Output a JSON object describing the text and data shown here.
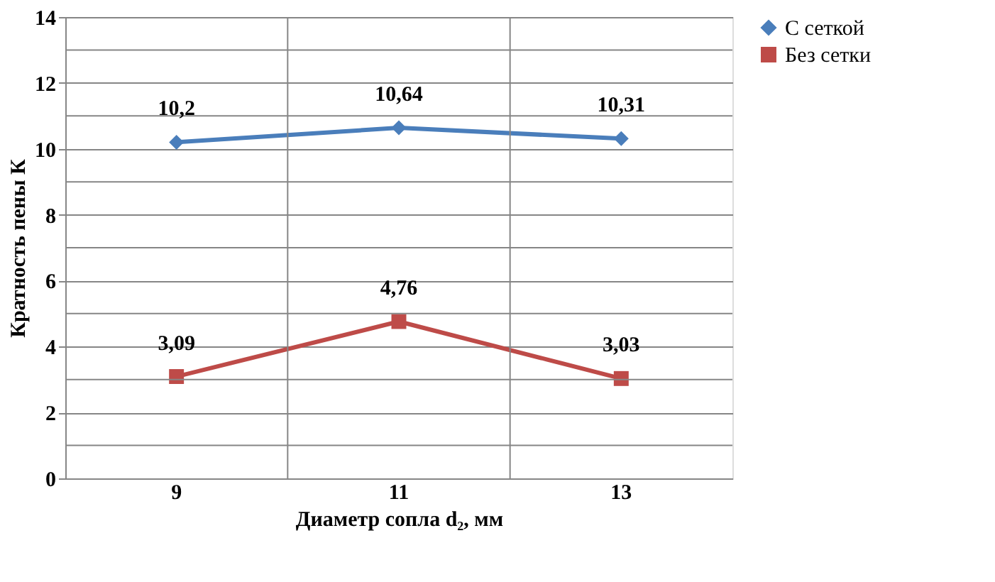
{
  "chart_data": {
    "type": "line",
    "xlabel": "Диаметр сопла d₂, мм",
    "ylabel": "Кратность пены К",
    "categories": [
      "9",
      "11",
      "13"
    ],
    "series": [
      {
        "name": "С сеткой",
        "color": "#4a7ebb",
        "marker": "diamond",
        "line_style": "solid",
        "values": [
          10.2,
          10.64,
          10.31
        ],
        "value_labels": [
          "10,2",
          "10,64",
          "10,31"
        ]
      },
      {
        "name": "Без сетки",
        "color": "#be4b48",
        "marker": "square",
        "line_style": "solid",
        "values": [
          3.09,
          4.76,
          3.03
        ],
        "value_labels": [
          "3,09",
          "4,76",
          "3,03"
        ]
      }
    ],
    "ylim": [
      0,
      14
    ],
    "yticks": [
      0,
      {
        "value": 1,
        "label": null
      },
      2,
      {
        "value": 3,
        "label": null
      },
      4,
      {
        "value": 5,
        "label": null
      },
      6,
      {
        "value": 7,
        "label": null
      },
      8,
      {
        "value": 9,
        "label": null
      },
      10,
      {
        "value": 11,
        "label": null
      },
      12,
      {
        "value": 13,
        "label": null
      },
      14
    ],
    "grid": true,
    "legend": "right"
  }
}
